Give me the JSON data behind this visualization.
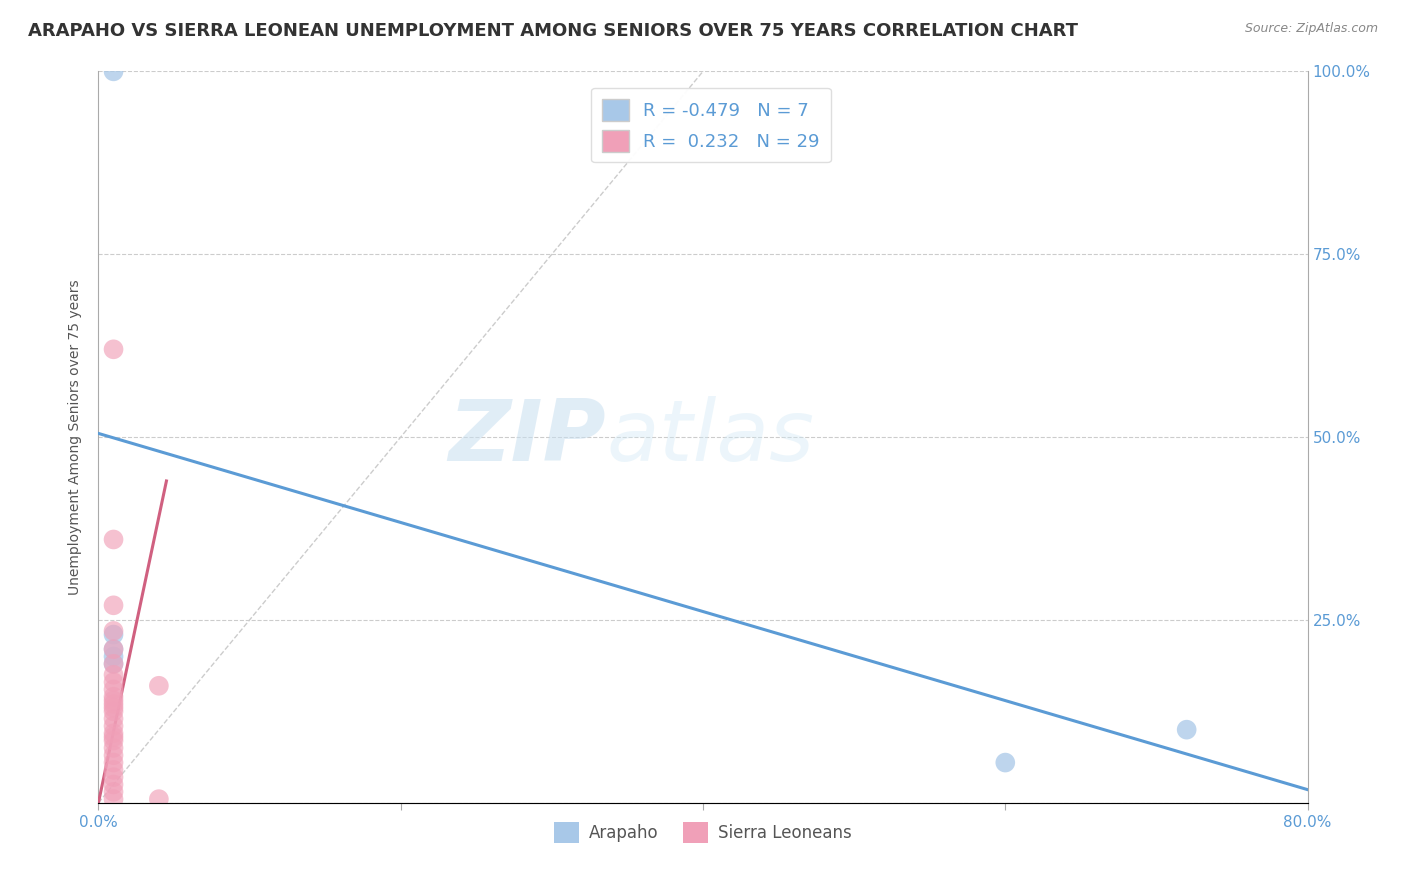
{
  "title": "ARAPAHO VS SIERRA LEONEAN UNEMPLOYMENT AMONG SENIORS OVER 75 YEARS CORRELATION CHART",
  "source": "Source: ZipAtlas.com",
  "ylabel": "Unemployment Among Seniors over 75 years",
  "arapaho_color": "#a8c8e8",
  "sierra_color": "#f0a0b8",
  "arapaho_line_color": "#5b9bd5",
  "sierra_line_color": "#d06080",
  "diagonal_line_color": "#cccccc",
  "arapaho_R": -0.479,
  "arapaho_N": 7,
  "sierra_R": 0.232,
  "sierra_N": 29,
  "xlim": [
    0.0,
    0.8
  ],
  "ylim": [
    0.0,
    1.0
  ],
  "x_ticks": [
    0.0,
    0.2,
    0.4,
    0.6,
    0.8
  ],
  "x_tick_labels": [
    "0.0%",
    "",
    "",
    "",
    "80.0%"
  ],
  "y_ticks": [
    0.0,
    0.25,
    0.5,
    0.75,
    1.0
  ],
  "y_tick_labels_right": [
    "",
    "25.0%",
    "50.0%",
    "75.0%",
    "100.0%"
  ],
  "watermark_zip": "ZIP",
  "watermark_atlas": "atlas",
  "arapaho_points": [
    [
      0.01,
      1.0
    ],
    [
      0.01,
      0.21
    ],
    [
      0.01,
      0.2
    ],
    [
      0.6,
      0.055
    ],
    [
      0.72,
      0.1
    ],
    [
      0.01,
      0.23
    ],
    [
      0.01,
      0.19
    ]
  ],
  "sierra_points": [
    [
      0.01,
      0.62
    ],
    [
      0.01,
      0.36
    ],
    [
      0.01,
      0.27
    ],
    [
      0.01,
      0.235
    ],
    [
      0.01,
      0.21
    ],
    [
      0.01,
      0.19
    ],
    [
      0.01,
      0.175
    ],
    [
      0.01,
      0.165
    ],
    [
      0.01,
      0.155
    ],
    [
      0.01,
      0.145
    ],
    [
      0.01,
      0.135
    ],
    [
      0.01,
      0.125
    ],
    [
      0.01,
      0.115
    ],
    [
      0.01,
      0.105
    ],
    [
      0.01,
      0.095
    ],
    [
      0.01,
      0.085
    ],
    [
      0.01,
      0.075
    ],
    [
      0.01,
      0.065
    ],
    [
      0.01,
      0.055
    ],
    [
      0.01,
      0.045
    ],
    [
      0.01,
      0.035
    ],
    [
      0.01,
      0.025
    ],
    [
      0.01,
      0.015
    ],
    [
      0.01,
      0.005
    ],
    [
      0.01,
      0.13
    ],
    [
      0.01,
      0.14
    ],
    [
      0.04,
      0.16
    ],
    [
      0.04,
      0.005
    ],
    [
      0.01,
      0.09
    ]
  ],
  "blue_line_x": [
    0.0,
    0.8
  ],
  "blue_line_y": [
    0.505,
    0.018
  ],
  "pink_line_x": [
    0.0,
    0.045
  ],
  "pink_line_y": [
    0.0,
    0.44
  ],
  "background_color": "#ffffff",
  "grid_color": "#cccccc",
  "title_fontsize": 13,
  "axis_label_fontsize": 10,
  "tick_fontsize": 11,
  "legend_fontsize": 13
}
